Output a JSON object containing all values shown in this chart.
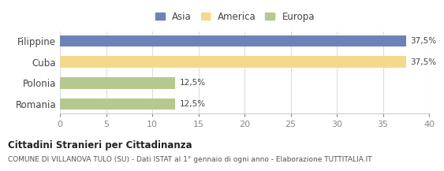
{
  "categories": [
    "Filippine",
    "Cuba",
    "Polonia",
    "Romania"
  ],
  "values": [
    37.5,
    37.5,
    12.5,
    12.5
  ],
  "colors": [
    "#6d83b8",
    "#f5d98b",
    "#b5c98e",
    "#b5c98e"
  ],
  "legend_labels": [
    "Asia",
    "America",
    "Europa"
  ],
  "legend_colors": [
    "#6d83b8",
    "#f5d98b",
    "#b5c98e"
  ],
  "bar_labels": [
    "37,5%",
    "37,5%",
    "12,5%",
    "12,5%"
  ],
  "xlim": [
    0,
    40
  ],
  "xticks": [
    0,
    5,
    10,
    15,
    20,
    25,
    30,
    35,
    40
  ],
  "title": "Cittadini Stranieri per Cittadinanza",
  "subtitle": "COMUNE DI VILLANOVA TULO (SU) - Dati ISTAT al 1° gennaio di ogni anno - Elaborazione TUTTITALIA.IT",
  "background_color": "#ffffff",
  "grid_color": "#dddddd"
}
